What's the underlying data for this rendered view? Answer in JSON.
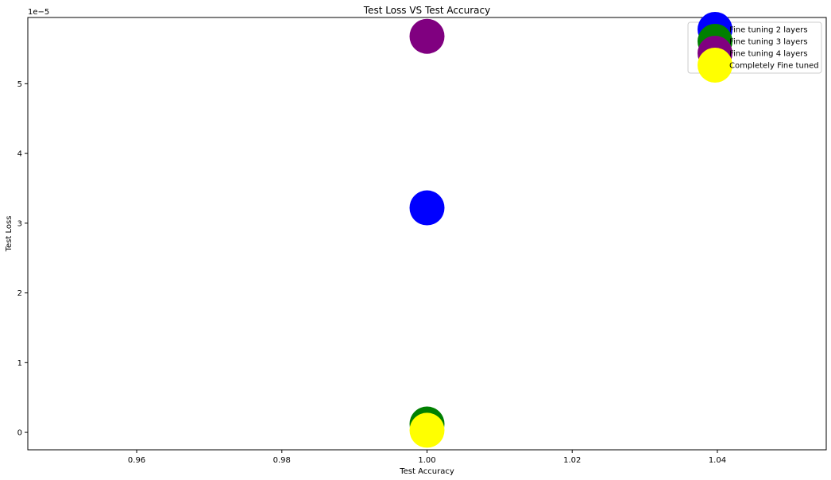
{
  "chart_data": {
    "type": "scatter",
    "title": "Test Loss VS Test Accuracy",
    "xlabel": "Test Accuracy",
    "ylabel": "Test Loss",
    "offset_text": "1e−5",
    "xlim": [
      0.945,
      1.055
    ],
    "ylim": [
      -0.25,
      5.95
    ],
    "xticks": [
      0.96,
      0.98,
      1.0,
      1.02,
      1.04
    ],
    "xtick_labels": [
      "0.96",
      "0.98",
      "1.00",
      "1.02",
      "1.04"
    ],
    "yticks": [
      0,
      1,
      2,
      3,
      4,
      5
    ],
    "ytick_labels": [
      "0",
      "1",
      "2",
      "3",
      "4",
      "5"
    ],
    "grid": false,
    "legend_position": "top-right",
    "series": [
      {
        "name": "Fine tuning 2 layers",
        "color": "#0000ff",
        "x": [
          1.0
        ],
        "y": [
          3.22
        ]
      },
      {
        "name": "Fine tuning 3 layers",
        "color": "#008000",
        "x": [
          1.0
        ],
        "y": [
          0.12
        ]
      },
      {
        "name": "Fine tuning 4 layers",
        "color": "#800080",
        "x": [
          1.0
        ],
        "y": [
          5.68
        ]
      },
      {
        "name": "Completely Fine tuned",
        "color": "#ffff00",
        "x": [
          1.0
        ],
        "y": [
          0.03
        ]
      }
    ]
  }
}
